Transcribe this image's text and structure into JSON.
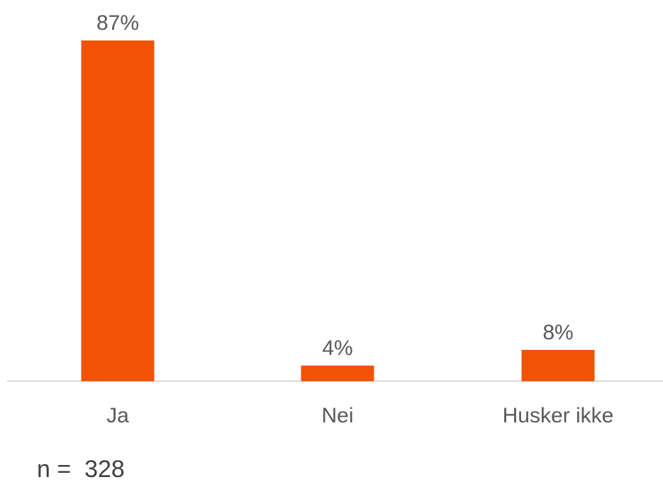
{
  "chart_data": {
    "type": "bar",
    "categories": [
      "Ja",
      "Nei",
      "Husker ikke"
    ],
    "values": [
      87,
      4,
      8
    ],
    "value_labels": [
      "87%",
      "4%",
      "8%"
    ],
    "ylim": [
      0,
      87
    ],
    "grid": false,
    "bar_color": "#F05306",
    "axis_color": "#D9D9D9",
    "text_color": "#595959"
  },
  "note": "n =  328"
}
